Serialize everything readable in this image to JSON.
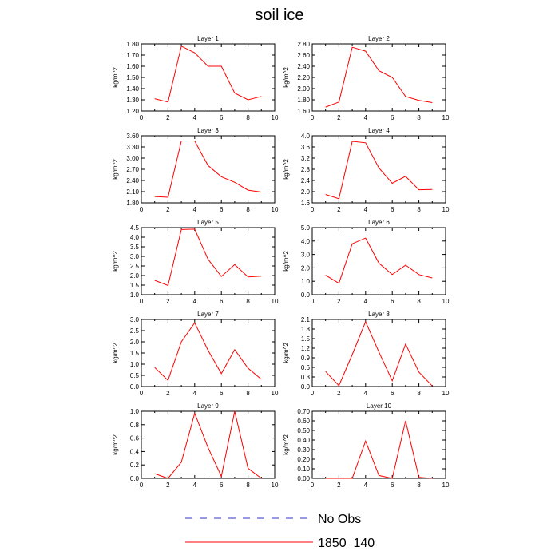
{
  "figure": {
    "title": "soil ice"
  },
  "legend": {
    "items": [
      "No Obs",
      "1850_140"
    ]
  },
  "colors": {
    "model": "#ff0000",
    "obs": "#3333cc",
    "axis": "#000000"
  },
  "chart_data": [
    {
      "type": "line",
      "title": "Layer 1",
      "ylabel": "kg/m^2",
      "x": [
        1,
        2,
        3,
        4,
        5,
        6,
        7,
        8,
        9
      ],
      "xlim": [
        0,
        10
      ],
      "xticks": [
        0,
        2,
        4,
        6,
        8,
        10
      ],
      "ylim": [
        1.2,
        1.8
      ],
      "yticks": [
        1.2,
        1.3,
        1.4,
        1.5,
        1.6,
        1.7,
        1.8
      ],
      "ytick_labels": [
        "1.20",
        "1.30",
        "1.40",
        "1.50",
        "1.60",
        "1.70",
        "1.80"
      ],
      "series": [
        {
          "name": "1850_140",
          "values": [
            1.31,
            1.28,
            1.78,
            1.72,
            1.6,
            1.6,
            1.36,
            1.3,
            1.33
          ]
        }
      ]
    },
    {
      "type": "line",
      "title": "Layer 2",
      "ylabel": "kg/m^2",
      "x": [
        1,
        2,
        3,
        4,
        5,
        6,
        7,
        8,
        9
      ],
      "xlim": [
        0,
        10
      ],
      "xticks": [
        0,
        2,
        4,
        6,
        8,
        10
      ],
      "ylim": [
        1.6,
        2.8
      ],
      "yticks": [
        1.6,
        1.8,
        2.0,
        2.2,
        2.4,
        2.6,
        2.8
      ],
      "ytick_labels": [
        "1.60",
        "1.80",
        "2.00",
        "2.20",
        "2.40",
        "2.60",
        "2.80"
      ],
      "series": [
        {
          "name": "1850_140",
          "values": [
            1.67,
            1.76,
            2.74,
            2.67,
            2.32,
            2.2,
            1.86,
            1.79,
            1.75
          ]
        }
      ]
    },
    {
      "type": "line",
      "title": "Layer 3",
      "ylabel": "kg/m^2",
      "x": [
        1,
        2,
        3,
        4,
        5,
        6,
        7,
        8,
        9
      ],
      "xlim": [
        0,
        10
      ],
      "xticks": [
        0,
        2,
        4,
        6,
        8,
        10
      ],
      "ylim": [
        1.8,
        3.6
      ],
      "yticks": [
        1.8,
        2.1,
        2.4,
        2.7,
        3.0,
        3.3,
        3.6
      ],
      "ytick_labels": [
        "1.80",
        "2.10",
        "2.40",
        "2.70",
        "3.00",
        "3.30",
        "3.60"
      ],
      "series": [
        {
          "name": "1850_140",
          "values": [
            1.97,
            1.95,
            3.46,
            3.46,
            2.8,
            2.5,
            2.35,
            2.14,
            2.09
          ]
        }
      ]
    },
    {
      "type": "line",
      "title": "Layer 4",
      "ylabel": "kg/m^2",
      "x": [
        1,
        2,
        3,
        4,
        5,
        6,
        7,
        8,
        9
      ],
      "xlim": [
        0,
        10
      ],
      "xticks": [
        0,
        2,
        4,
        6,
        8,
        10
      ],
      "ylim": [
        1.6,
        4.0
      ],
      "yticks": [
        1.6,
        2.0,
        2.4,
        2.8,
        3.2,
        3.6,
        4.0
      ],
      "ytick_labels": [
        "1.6",
        "2.0",
        "2.4",
        "2.8",
        "3.2",
        "3.6",
        "4.0"
      ],
      "series": [
        {
          "name": "1850_140",
          "values": [
            1.9,
            1.75,
            3.8,
            3.75,
            2.85,
            2.3,
            2.55,
            2.07,
            2.08
          ]
        }
      ]
    },
    {
      "type": "line",
      "title": "Layer 5",
      "ylabel": "kg/m^2",
      "x": [
        1,
        2,
        3,
        4,
        5,
        6,
        7,
        8,
        9
      ],
      "xlim": [
        0,
        10
      ],
      "xticks": [
        0,
        2,
        4,
        6,
        8,
        10
      ],
      "ylim": [
        1.0,
        4.5
      ],
      "yticks": [
        1.0,
        1.5,
        2.0,
        2.5,
        3.0,
        3.5,
        4.0,
        4.5
      ],
      "ytick_labels": [
        "1.0",
        "1.5",
        "2.0",
        "2.5",
        "3.0",
        "3.5",
        "4.0",
        "4.5"
      ],
      "series": [
        {
          "name": "1850_140",
          "values": [
            1.75,
            1.48,
            4.4,
            4.42,
            2.85,
            1.95,
            2.57,
            1.93,
            1.97
          ]
        }
      ]
    },
    {
      "type": "line",
      "title": "Layer 6",
      "ylabel": "kg/m^2",
      "x": [
        1,
        2,
        3,
        4,
        5,
        6,
        7,
        8,
        9
      ],
      "xlim": [
        0,
        10
      ],
      "xticks": [
        0,
        2,
        4,
        6,
        8,
        10
      ],
      "ylim": [
        0.0,
        5.0
      ],
      "yticks": [
        0.0,
        1.0,
        2.0,
        3.0,
        4.0,
        5.0
      ],
      "ytick_labels": [
        "0.0",
        "1.0",
        "2.0",
        "3.0",
        "4.0",
        "5.0"
      ],
      "series": [
        {
          "name": "1850_140",
          "values": [
            1.45,
            0.85,
            3.8,
            4.22,
            2.35,
            1.5,
            2.2,
            1.5,
            1.25
          ]
        }
      ]
    },
    {
      "type": "line",
      "title": "Layer 7",
      "ylabel": "kg/m^2",
      "x": [
        1,
        2,
        3,
        4,
        5,
        6,
        7,
        8,
        9
      ],
      "xlim": [
        0,
        10
      ],
      "xticks": [
        0,
        2,
        4,
        6,
        8,
        10
      ],
      "ylim": [
        0.0,
        3.0
      ],
      "yticks": [
        0.0,
        0.5,
        1.0,
        1.5,
        2.0,
        2.5,
        3.0
      ],
      "ytick_labels": [
        "0.0",
        "0.5",
        "1.0",
        "1.5",
        "2.0",
        "2.5",
        "3.0"
      ],
      "series": [
        {
          "name": "1850_140",
          "values": [
            0.85,
            0.28,
            2.0,
            2.85,
            1.62,
            0.58,
            1.65,
            0.82,
            0.32
          ]
        }
      ]
    },
    {
      "type": "line",
      "title": "Layer 8",
      "ylabel": "kg/m^2",
      "x": [
        1,
        2,
        3,
        4,
        5,
        6,
        7,
        8,
        9
      ],
      "xlim": [
        0,
        10
      ],
      "xticks": [
        0,
        2,
        4,
        6,
        8,
        10
      ],
      "ylim": [
        0.0,
        2.1
      ],
      "yticks": [
        0.0,
        0.3,
        0.6,
        0.9,
        1.2,
        1.5,
        1.8,
        2.1
      ],
      "ytick_labels": [
        "0.0",
        "0.3",
        "0.6",
        "0.9",
        "1.2",
        "1.5",
        "1.8",
        "2.1"
      ],
      "series": [
        {
          "name": "1850_140",
          "values": [
            0.47,
            0.03,
            1.0,
            2.03,
            1.08,
            0.18,
            1.33,
            0.45,
            0.02
          ]
        }
      ]
    },
    {
      "type": "line",
      "title": "Layer 9",
      "ylabel": "kg/m^2",
      "x": [
        1,
        2,
        3,
        4,
        5,
        6,
        7,
        8,
        9
      ],
      "xlim": [
        0,
        10
      ],
      "xticks": [
        0,
        2,
        4,
        6,
        8,
        10
      ],
      "ylim": [
        0.0,
        1.0
      ],
      "yticks": [
        0.0,
        0.2,
        0.4,
        0.6,
        0.8,
        1.0
      ],
      "ytick_labels": [
        "0.0",
        "0.2",
        "0.4",
        "0.6",
        "0.8",
        "1.0"
      ],
      "series": [
        {
          "name": "1850_140",
          "values": [
            0.07,
            0.0,
            0.24,
            0.97,
            0.46,
            0.03,
            1.0,
            0.15,
            0.0
          ]
        }
      ]
    },
    {
      "type": "line",
      "title": "Layer 10",
      "ylabel": "kg/m^2",
      "x": [
        1,
        2,
        3,
        4,
        5,
        6,
        7,
        8,
        9
      ],
      "xlim": [
        0,
        10
      ],
      "xticks": [
        0,
        2,
        4,
        6,
        8,
        10
      ],
      "ylim": [
        0.0,
        0.7
      ],
      "yticks": [
        0.0,
        0.1,
        0.2,
        0.3,
        0.4,
        0.5,
        0.6,
        0.7
      ],
      "ytick_labels": [
        "0.00",
        "0.10",
        "0.20",
        "0.30",
        "0.40",
        "0.50",
        "0.60",
        "0.70"
      ],
      "series": [
        {
          "name": "1850_140",
          "values": [
            0.0,
            0.0,
            0.0,
            0.39,
            0.03,
            0.0,
            0.6,
            0.01,
            0.0
          ]
        }
      ]
    }
  ]
}
